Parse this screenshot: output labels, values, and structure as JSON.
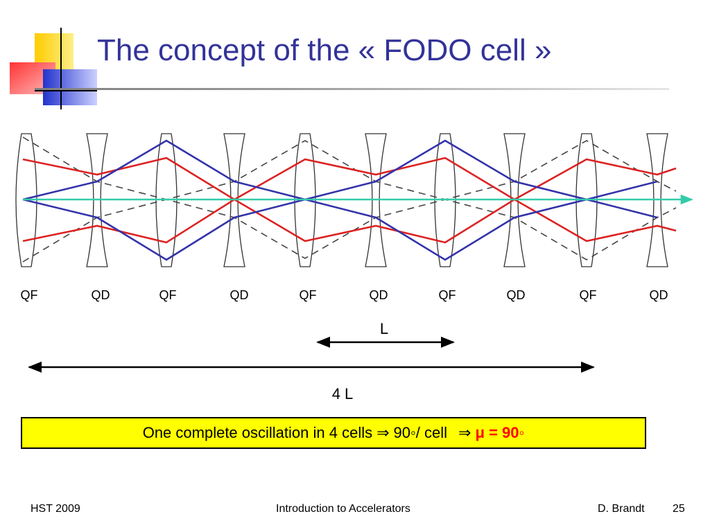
{
  "slide": {
    "title": "The concept of the « FODO cell »"
  },
  "lenses": [
    "QF",
    "QD",
    "QF",
    "QD",
    "QF",
    "QD",
    "QF",
    "QD",
    "QF",
    "QD"
  ],
  "dimensions": {
    "cell_length_label": "L",
    "total_length_label": "4 L"
  },
  "callout": {
    "text": "One complete oscillation in 4 cells",
    "arrow1": "⇒",
    "phase_per_cell": "90◦/ cell",
    "arrow2": "⇒",
    "mu_symbol": "μ",
    "mu_value": " = 90◦"
  },
  "footer": {
    "left": "HST 2009",
    "center": "Introduction to Accelerators",
    "author": "D. Brandt",
    "page": "25"
  },
  "colors": {
    "title": "#333399",
    "trajectory_red": "#dd2222",
    "trajectory_blue": "#3333aa",
    "axis": "#33ccaa",
    "callout_bg": "#ffff00"
  }
}
